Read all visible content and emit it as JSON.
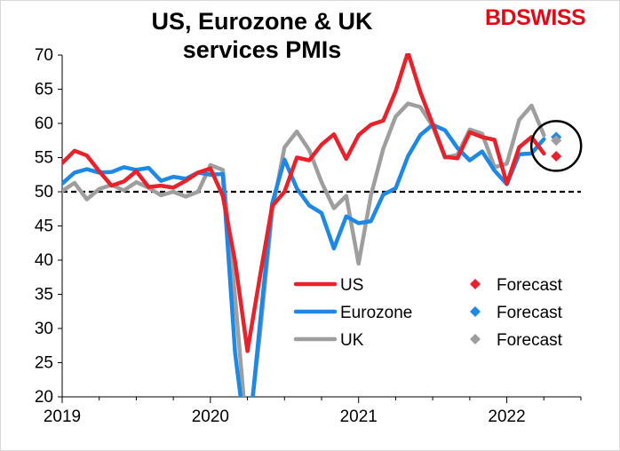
{
  "title": {
    "line1": "US, Eurozone & UK",
    "line2": "services PMIs"
  },
  "brand": {
    "text": "BDSWISS",
    "color": "#e30613"
  },
  "chart_data": {
    "type": "line",
    "title": "US, Eurozone & UK services PMIs",
    "x_range": [
      2019.0,
      2022.5
    ],
    "ylim": [
      20,
      70
    ],
    "y_ticks": [
      20,
      25,
      30,
      35,
      40,
      45,
      50,
      55,
      60,
      65,
      70
    ],
    "x_ticks": [
      2019,
      2020,
      2021,
      2022
    ],
    "x_tick_labels": [
      "2019",
      "2020",
      "2021",
      "2022"
    ],
    "reference_line": {
      "y": 50,
      "style": "dashed"
    },
    "grid": false,
    "legend_position": "lower-right inside plot",
    "series": [
      {
        "name": "US",
        "color": "#e8212b",
        "x": [
          "2019-01",
          "2019-02",
          "2019-03",
          "2019-04",
          "2019-05",
          "2019-06",
          "2019-07",
          "2019-08",
          "2019-09",
          "2019-10",
          "2019-11",
          "2019-12",
          "2020-01",
          "2020-02",
          "2020-03",
          "2020-04",
          "2020-05",
          "2020-06",
          "2020-07",
          "2020-08",
          "2020-09",
          "2020-10",
          "2020-11",
          "2020-12",
          "2021-01",
          "2021-02",
          "2021-03",
          "2021-04",
          "2021-05",
          "2021-06",
          "2021-07",
          "2021-08",
          "2021-09",
          "2021-10",
          "2021-11",
          "2021-12",
          "2022-01",
          "2022-02",
          "2022-03",
          "2022-04"
        ],
        "values": [
          54.2,
          56.0,
          55.3,
          53.0,
          50.9,
          51.5,
          53.0,
          50.7,
          50.9,
          50.6,
          51.6,
          52.8,
          53.4,
          49.4,
          39.8,
          26.7,
          37.5,
          47.9,
          50.0,
          55.0,
          54.6,
          56.9,
          58.4,
          54.8,
          58.3,
          59.8,
          60.4,
          64.7,
          70.4,
          64.6,
          59.9,
          55.1,
          54.9,
          58.7,
          58.0,
          57.6,
          51.2,
          56.5,
          58.0,
          55.6
        ]
      },
      {
        "name": "Eurozone",
        "color": "#1e88e5",
        "x": [
          "2019-01",
          "2019-02",
          "2019-03",
          "2019-04",
          "2019-05",
          "2019-06",
          "2019-07",
          "2019-08",
          "2019-09",
          "2019-10",
          "2019-11",
          "2019-12",
          "2020-01",
          "2020-02",
          "2020-03",
          "2020-04",
          "2020-05",
          "2020-06",
          "2020-07",
          "2020-08",
          "2020-09",
          "2020-10",
          "2020-11",
          "2020-12",
          "2021-01",
          "2021-02",
          "2021-03",
          "2021-04",
          "2021-05",
          "2021-06",
          "2021-07",
          "2021-08",
          "2021-09",
          "2021-10",
          "2021-11",
          "2021-12",
          "2022-01",
          "2022-02",
          "2022-03",
          "2022-04"
        ],
        "values": [
          51.2,
          52.8,
          53.3,
          52.8,
          52.9,
          53.6,
          53.2,
          53.5,
          51.6,
          52.2,
          51.9,
          52.8,
          52.5,
          52.6,
          26.4,
          12.0,
          30.5,
          48.3,
          54.7,
          50.5,
          48.0,
          46.9,
          41.7,
          46.4,
          45.4,
          45.7,
          49.6,
          50.5,
          55.2,
          58.3,
          59.8,
          59.0,
          56.4,
          54.6,
          55.9,
          53.1,
          51.1,
          55.5,
          55.6,
          57.7
        ]
      },
      {
        "name": "UK",
        "color": "#9e9e9e",
        "x": [
          "2019-01",
          "2019-02",
          "2019-03",
          "2019-04",
          "2019-05",
          "2019-06",
          "2019-07",
          "2019-08",
          "2019-09",
          "2019-10",
          "2019-11",
          "2019-12",
          "2020-01",
          "2020-02",
          "2020-03",
          "2020-04",
          "2020-05",
          "2020-06",
          "2020-07",
          "2020-08",
          "2020-09",
          "2020-10",
          "2020-11",
          "2020-12",
          "2021-01",
          "2021-02",
          "2021-03",
          "2021-04",
          "2021-05",
          "2021-06",
          "2021-07",
          "2021-08",
          "2021-09",
          "2021-10",
          "2021-11",
          "2021-12",
          "2022-01",
          "2022-02",
          "2022-03",
          "2022-04"
        ],
        "values": [
          50.1,
          51.3,
          48.9,
          50.4,
          51.0,
          50.2,
          51.4,
          50.6,
          49.5,
          50.0,
          49.3,
          50.0,
          53.9,
          53.2,
          34.5,
          13.4,
          29.0,
          47.1,
          56.5,
          58.8,
          56.1,
          51.4,
          47.6,
          49.4,
          39.5,
          49.5,
          56.3,
          61.0,
          62.9,
          62.4,
          59.6,
          55.0,
          55.4,
          59.1,
          58.5,
          53.6,
          54.1,
          60.5,
          62.6,
          58.3
        ]
      },
      {
        "name": "Forecast",
        "color": "#e8212b",
        "marker": "diamond",
        "x": [
          "2022-05"
        ],
        "values": [
          55.2
        ]
      },
      {
        "name": "Forecast",
        "color": "#1e88e5",
        "marker": "diamond",
        "x": [
          "2022-05"
        ],
        "values": [
          58.0
        ]
      },
      {
        "name": "Forecast",
        "color": "#9e9e9e",
        "marker": "diamond",
        "x": [
          "2022-05"
        ],
        "values": [
          57.5
        ]
      }
    ],
    "annotations": [
      {
        "type": "circle",
        "x": "2022-05",
        "y": 56.7,
        "description": "highlight around forecast points"
      }
    ]
  }
}
